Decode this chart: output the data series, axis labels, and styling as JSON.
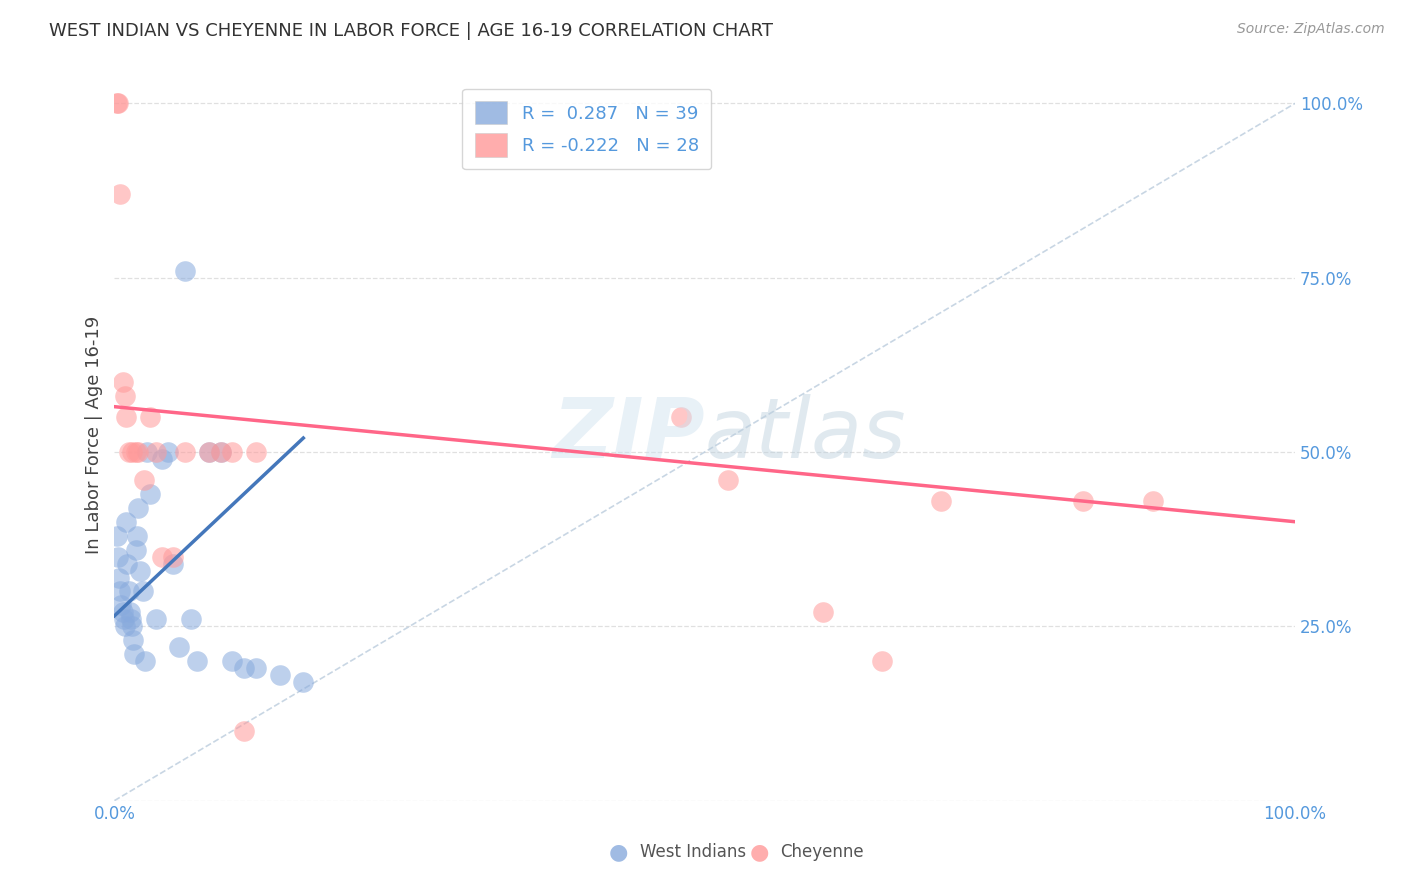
{
  "title": "WEST INDIAN VS CHEYENNE IN LABOR FORCE | AGE 16-19 CORRELATION CHART",
  "source": "Source: ZipAtlas.com",
  "ylabel": "In Labor Force | Age 16-19",
  "color_blue": "#88AADD",
  "color_pink": "#FF9999",
  "color_blue_line": "#4477BB",
  "color_pink_line": "#FF6688",
  "color_diag": "#BBCCDD",
  "west_indians_x": [
    0.002,
    0.003,
    0.004,
    0.005,
    0.006,
    0.007,
    0.008,
    0.009,
    0.01,
    0.011,
    0.012,
    0.013,
    0.014,
    0.015,
    0.016,
    0.017,
    0.018,
    0.019,
    0.02,
    0.022,
    0.024,
    0.026,
    0.028,
    0.03,
    0.035,
    0.04,
    0.045,
    0.05,
    0.055,
    0.06,
    0.065,
    0.07,
    0.08,
    0.09,
    0.1,
    0.11,
    0.12,
    0.14,
    0.16
  ],
  "west_indians_y": [
    0.38,
    0.35,
    0.32,
    0.3,
    0.28,
    0.27,
    0.26,
    0.25,
    0.4,
    0.34,
    0.3,
    0.27,
    0.26,
    0.25,
    0.23,
    0.21,
    0.36,
    0.38,
    0.42,
    0.33,
    0.3,
    0.2,
    0.5,
    0.44,
    0.26,
    0.49,
    0.5,
    0.34,
    0.22,
    0.76,
    0.26,
    0.2,
    0.5,
    0.5,
    0.2,
    0.19,
    0.19,
    0.18,
    0.17
  ],
  "cheyenne_x": [
    0.002,
    0.003,
    0.005,
    0.007,
    0.009,
    0.01,
    0.012,
    0.015,
    0.018,
    0.02,
    0.025,
    0.03,
    0.035,
    0.04,
    0.05,
    0.06,
    0.08,
    0.09,
    0.1,
    0.11,
    0.12,
    0.48,
    0.52,
    0.6,
    0.65,
    0.7,
    0.82,
    0.88
  ],
  "cheyenne_y": [
    1.0,
    1.0,
    0.87,
    0.6,
    0.58,
    0.55,
    0.5,
    0.5,
    0.5,
    0.5,
    0.46,
    0.55,
    0.5,
    0.35,
    0.35,
    0.5,
    0.5,
    0.5,
    0.5,
    0.1,
    0.5,
    0.55,
    0.46,
    0.27,
    0.2,
    0.43,
    0.43,
    0.43
  ],
  "blue_line_x": [
    0.0,
    0.16
  ],
  "blue_line_y": [
    0.265,
    0.52
  ],
  "pink_line_x": [
    0.0,
    1.0
  ],
  "pink_line_y": [
    0.565,
    0.4
  ],
  "xlim": [
    0.0,
    1.0
  ],
  "ylim": [
    0.0,
    1.05
  ]
}
